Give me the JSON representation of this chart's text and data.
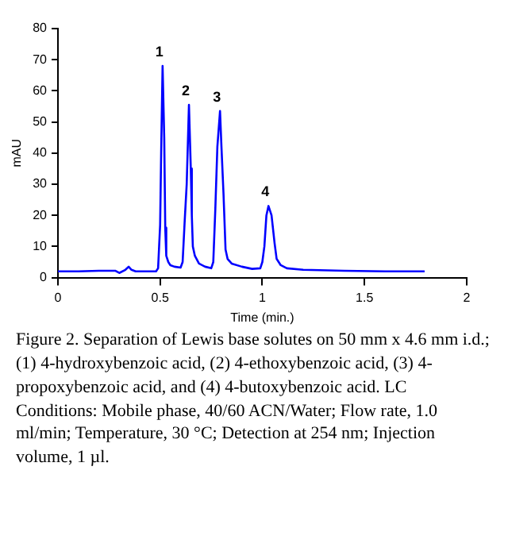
{
  "chart_data": {
    "type": "line",
    "xlabel": "Time (min.)",
    "ylabel": "mAU",
    "xlim": [
      0,
      2
    ],
    "xticks": [
      0,
      0.5,
      1,
      1.5,
      2
    ],
    "ylim": [
      0,
      80
    ],
    "yticks": [
      0,
      10,
      20,
      30,
      40,
      50,
      60,
      70,
      80
    ],
    "grid": false,
    "legend": false,
    "marker": "none",
    "line_style": "solid",
    "series": [
      {
        "color": "#0000ff",
        "x": [
          0,
          0.1,
          0.2,
          0.28,
          0.3,
          0.33,
          0.346,
          0.36,
          0.38,
          0.48,
          0.49,
          0.5,
          0.505,
          0.512,
          0.52,
          0.525,
          0.53,
          0.54,
          0.55,
          0.57,
          0.6,
          0.61,
          0.62,
          0.63,
          0.641,
          0.65,
          0.655,
          0.66,
          0.67,
          0.69,
          0.72,
          0.75,
          0.76,
          0.77,
          0.78,
          0.793,
          0.8,
          0.81,
          0.82,
          0.83,
          0.85,
          0.9,
          0.95,
          0.99,
          1.0,
          1.01,
          1.02,
          1.03,
          1.045,
          1.06,
          1.07,
          1.09,
          1.12,
          1.2,
          1.4,
          1.6,
          1.794
        ],
        "values": [
          2,
          2,
          2.2,
          2.2,
          1.5,
          2.5,
          3.5,
          2.5,
          2,
          2,
          3,
          17,
          40,
          68,
          45,
          16,
          7,
          5,
          4,
          3.5,
          3.2,
          5,
          18,
          30,
          55.5,
          35,
          20,
          10,
          7,
          4.5,
          3.5,
          3,
          5,
          22,
          42,
          53.5,
          42,
          27,
          9,
          6,
          4.5,
          3.5,
          2.8,
          3,
          5,
          10,
          20,
          23,
          20,
          11,
          6,
          4,
          3,
          2.5,
          2.2,
          2,
          2
        ]
      }
    ],
    "annotations": [
      {
        "text": "1",
        "x": 0.512,
        "y": 68
      },
      {
        "text": "2",
        "x": 0.641,
        "y": 55.5
      },
      {
        "text": "3",
        "x": 0.793,
        "y": 53.5
      },
      {
        "text": "4",
        "x": 1.03,
        "y": 23
      },
      "Figure 2. Separation of Lewis base solutes on 50 mm x 4.6 mm i.d.; (1) 4-hydroxybenzoic acid, (2) 4-ethoxybenzoic acid, (3) 4-propoxybenzoic acid, and (4) 4-butoxybenzoic acid. LC Conditions: Mobile phase, 40/60 ACN/Water; Flow rate, 1.0 ml/min; Temperature, 30 °C; Detection at 254 nm; Injection volume, 1 µl."
    ]
  }
}
